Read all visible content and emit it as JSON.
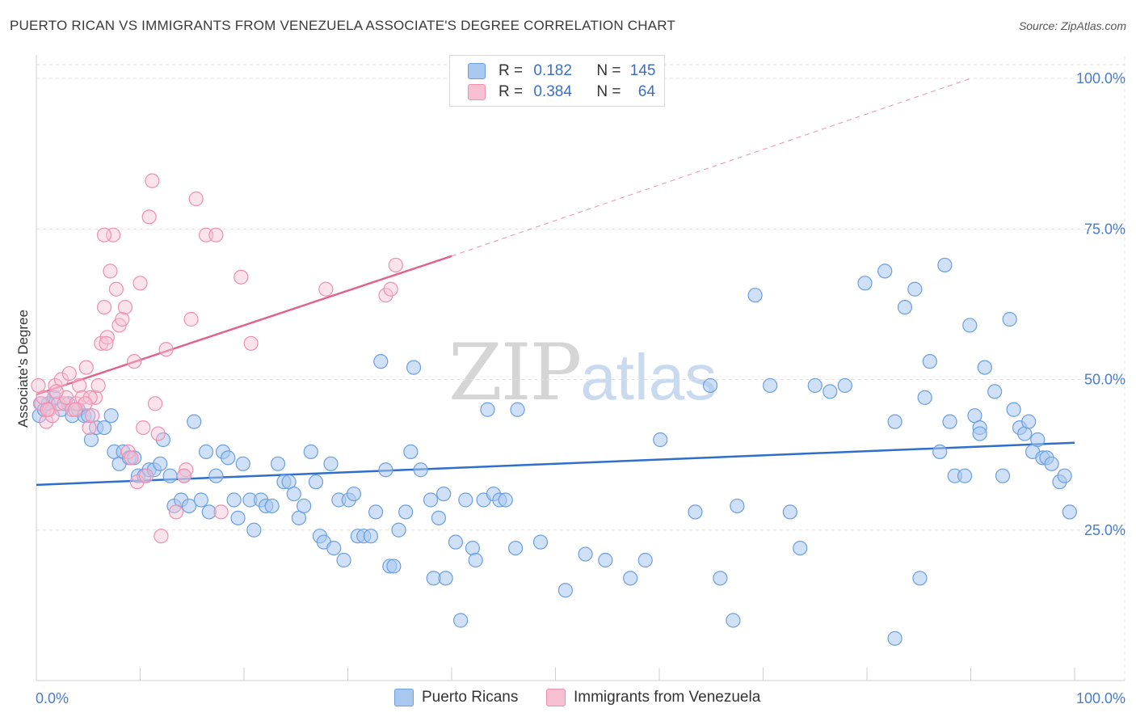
{
  "title": "PUERTO RICAN VS IMMIGRANTS FROM VENEZUELA ASSOCIATE'S DEGREE CORRELATION CHART",
  "source": "Source: ZipAtlas.com",
  "watermark": {
    "zip": "ZIP",
    "atlas": "atlas"
  },
  "colors": {
    "blue_fill": "#a9c8f0",
    "blue_stroke": "#6a9fe0",
    "blue_line": "#2f6fca",
    "pink_fill": "#f6c0d2",
    "pink_stroke": "#ee8fb0",
    "pink_line": "#e0648e",
    "grid": "#e2e2e2",
    "axis_text": "#4a7cc9"
  },
  "legend": {
    "rows": [
      {
        "r_label": "R = ",
        "r_value": "0.182",
        "n_label": "N = ",
        "n_value": "145",
        "color": "#a9c8f0"
      },
      {
        "r_label": "R = ",
        "r_value": "0.384",
        "n_label": "N = ",
        "n_value": "64",
        "color": "#f6c0d2"
      }
    ]
  },
  "bottom_legend": [
    {
      "label": "Puerto Ricans",
      "color": "#a9c8f0"
    },
    {
      "label": "Immigrants from Venezuela",
      "color": "#f6c0d2"
    }
  ],
  "chart_data": {
    "type": "scatter",
    "title": "PUERTO RICAN VS IMMIGRANTS FROM VENEZUELA ASSOCIATE'S DEGREE CORRELATION CHART",
    "xlabel": "",
    "ylabel": "Associate's Degree",
    "xlim": [
      0,
      100
    ],
    "ylim": [
      0,
      100
    ],
    "x_tick_labels": [
      {
        "value": 0,
        "label": "0.0%"
      },
      {
        "value": 100,
        "label": "100.0%"
      }
    ],
    "y_tick_labels": [
      {
        "value": 25,
        "label": "25.0%"
      },
      {
        "value": 50,
        "label": "50.0%"
      },
      {
        "value": 75,
        "label": "75.0%"
      },
      {
        "value": 100,
        "label": "100.0%"
      }
    ],
    "grid": true,
    "series": [
      {
        "name": "Puerto Ricans",
        "color": "#a9c8f0",
        "trend": {
          "x0": 0,
          "y0": 32.5,
          "x1": 100,
          "y1": 39.5
        },
        "points": [
          [
            0.3,
            44
          ],
          [
            0.5,
            46
          ],
          [
            0.8,
            45
          ],
          [
            1.2,
            46
          ],
          [
            1.8,
            47
          ],
          [
            2.5,
            45
          ],
          [
            3.2,
            46
          ],
          [
            3.6,
            44
          ],
          [
            4.2,
            45
          ],
          [
            4.8,
            44
          ],
          [
            5.2,
            44
          ],
          [
            5.5,
            40
          ],
          [
            6.0,
            42
          ],
          [
            6.8,
            42
          ],
          [
            7.5,
            44
          ],
          [
            7.8,
            38
          ],
          [
            8.3,
            36
          ],
          [
            8.7,
            38
          ],
          [
            9.3,
            37
          ],
          [
            9.8,
            37
          ],
          [
            10.2,
            34
          ],
          [
            10.8,
            34
          ],
          [
            11.3,
            35
          ],
          [
            11.8,
            35
          ],
          [
            12.4,
            36
          ],
          [
            12.7,
            40
          ],
          [
            13.4,
            34
          ],
          [
            13.8,
            29
          ],
          [
            14.5,
            30
          ],
          [
            14.8,
            34
          ],
          [
            15.3,
            29
          ],
          [
            15.8,
            43
          ],
          [
            16.5,
            30
          ],
          [
            17.0,
            38
          ],
          [
            17.3,
            28
          ],
          [
            18.0,
            34
          ],
          [
            18.7,
            38
          ],
          [
            19.2,
            37
          ],
          [
            19.8,
            30
          ],
          [
            20.2,
            27
          ],
          [
            20.7,
            36
          ],
          [
            21.4,
            30
          ],
          [
            21.8,
            25
          ],
          [
            22.5,
            30
          ],
          [
            23.0,
            29
          ],
          [
            23.6,
            29
          ],
          [
            24.2,
            36
          ],
          [
            24.8,
            33
          ],
          [
            25.3,
            33
          ],
          [
            25.8,
            31
          ],
          [
            26.3,
            27
          ],
          [
            26.8,
            29
          ],
          [
            27.5,
            38
          ],
          [
            28.0,
            33
          ],
          [
            28.4,
            24
          ],
          [
            28.8,
            23
          ],
          [
            29.5,
            36
          ],
          [
            29.8,
            22
          ],
          [
            30.3,
            30
          ],
          [
            30.8,
            20
          ],
          [
            31.3,
            30
          ],
          [
            31.8,
            31
          ],
          [
            32.2,
            24
          ],
          [
            32.8,
            24
          ],
          [
            33.5,
            24
          ],
          [
            34.0,
            28
          ],
          [
            34.5,
            53
          ],
          [
            35.0,
            35
          ],
          [
            35.4,
            19
          ],
          [
            35.8,
            19
          ],
          [
            36.3,
            25
          ],
          [
            37.0,
            28
          ],
          [
            37.5,
            38
          ],
          [
            37.8,
            52
          ],
          [
            38.5,
            35
          ],
          [
            39.5,
            30
          ],
          [
            39.8,
            17
          ],
          [
            40.3,
            27
          ],
          [
            40.8,
            31
          ],
          [
            41.0,
            17
          ],
          [
            42.0,
            23
          ],
          [
            42.5,
            10
          ],
          [
            43.0,
            30
          ],
          [
            43.7,
            22
          ],
          [
            44.0,
            20
          ],
          [
            44.8,
            30
          ],
          [
            45.2,
            45
          ],
          [
            45.8,
            31
          ],
          [
            46.4,
            30
          ],
          [
            47.0,
            30
          ],
          [
            48.0,
            22
          ],
          [
            48.2,
            45
          ],
          [
            50.5,
            23
          ],
          [
            53.0,
            15
          ],
          [
            55.0,
            21
          ],
          [
            57.0,
            20
          ],
          [
            59.5,
            17
          ],
          [
            61.0,
            20
          ],
          [
            62.5,
            40
          ],
          [
            66.0,
            28
          ],
          [
            67.5,
            49
          ],
          [
            68.5,
            17
          ],
          [
            69.8,
            10
          ],
          [
            70.2,
            29
          ],
          [
            72.0,
            64
          ],
          [
            73.5,
            49
          ],
          [
            75.5,
            28
          ],
          [
            76.5,
            22
          ],
          [
            78.0,
            49
          ],
          [
            79.5,
            48
          ],
          [
            81.0,
            49
          ],
          [
            83.0,
            66
          ],
          [
            85.0,
            68
          ],
          [
            86.0,
            43
          ],
          [
            87.0,
            62
          ],
          [
            88.0,
            65
          ],
          [
            89.0,
            47
          ],
          [
            89.5,
            53
          ],
          [
            90.5,
            38
          ],
          [
            91.0,
            69
          ],
          [
            91.5,
            43
          ],
          [
            92.0,
            34
          ],
          [
            93.0,
            34
          ],
          [
            93.5,
            59
          ],
          [
            94.0,
            44
          ],
          [
            94.5,
            42
          ],
          [
            95.0,
            52
          ],
          [
            96.0,
            48
          ],
          [
            96.8,
            34
          ],
          [
            97.5,
            60
          ],
          [
            97.9,
            45
          ],
          [
            98.5,
            42
          ],
          [
            99.0,
            41
          ],
          [
            99.4,
            43
          ],
          [
            99.8,
            38
          ],
          [
            100.3,
            40
          ],
          [
            100.8,
            37
          ],
          [
            101.2,
            37
          ],
          [
            101.7,
            36
          ],
          [
            102.5,
            33
          ],
          [
            103.0,
            34
          ],
          [
            103.5,
            28
          ],
          [
            86.0,
            7
          ],
          [
            88.5,
            17
          ],
          [
            94.5,
            41
          ]
        ]
      },
      {
        "name": "Immigrants from Venezuela",
        "color": "#f6c0d2",
        "trend": {
          "x0": 0,
          "y0": 47.5,
          "x1": 40,
          "y1": 70.5,
          "dashed_to": {
            "x": 90,
            "y": 100
          }
        },
        "points": [
          [
            0.2,
            49
          ],
          [
            0.4,
            46
          ],
          [
            0.7,
            47
          ],
          [
            1.0,
            43
          ],
          [
            1.3,
            45
          ],
          [
            1.6,
            44
          ],
          [
            1.9,
            49
          ],
          [
            2.2,
            46
          ],
          [
            2.5,
            50
          ],
          [
            2.8,
            46
          ],
          [
            3.0,
            47
          ],
          [
            3.3,
            51
          ],
          [
            3.6,
            45
          ],
          [
            4.0,
            46
          ],
          [
            4.3,
            49
          ],
          [
            4.6,
            47
          ],
          [
            5.0,
            52
          ],
          [
            5.3,
            42
          ],
          [
            5.6,
            44
          ],
          [
            5.9,
            47
          ],
          [
            6.2,
            49
          ],
          [
            6.5,
            56
          ],
          [
            6.8,
            62
          ],
          [
            7.1,
            57
          ],
          [
            7.4,
            68
          ],
          [
            7.7,
            74
          ],
          [
            8.0,
            65
          ],
          [
            8.3,
            59
          ],
          [
            8.6,
            60
          ],
          [
            8.9,
            62
          ],
          [
            9.2,
            38
          ],
          [
            9.5,
            37
          ],
          [
            9.8,
            53
          ],
          [
            10.1,
            33
          ],
          [
            10.4,
            66
          ],
          [
            10.7,
            42
          ],
          [
            11.0,
            34
          ],
          [
            11.3,
            77
          ],
          [
            11.6,
            83
          ],
          [
            11.9,
            46
          ],
          [
            12.2,
            41
          ],
          [
            13.0,
            55
          ],
          [
            14.0,
            28
          ],
          [
            15.0,
            35
          ],
          [
            15.5,
            60
          ],
          [
            16.0,
            80
          ],
          [
            17.0,
            74
          ],
          [
            18.0,
            74
          ],
          [
            18.5,
            28
          ],
          [
            20.5,
            67
          ],
          [
            21.5,
            56
          ],
          [
            29.0,
            65
          ],
          [
            35.0,
            64
          ],
          [
            35.5,
            65
          ],
          [
            36.0,
            69
          ],
          [
            6.8,
            74
          ],
          [
            7.0,
            56
          ],
          [
            5.4,
            47
          ],
          [
            4.9,
            46
          ],
          [
            3.9,
            45
          ],
          [
            2.0,
            48
          ],
          [
            1.1,
            45
          ],
          [
            12.5,
            24
          ],
          [
            14.8,
            34
          ]
        ]
      }
    ]
  }
}
